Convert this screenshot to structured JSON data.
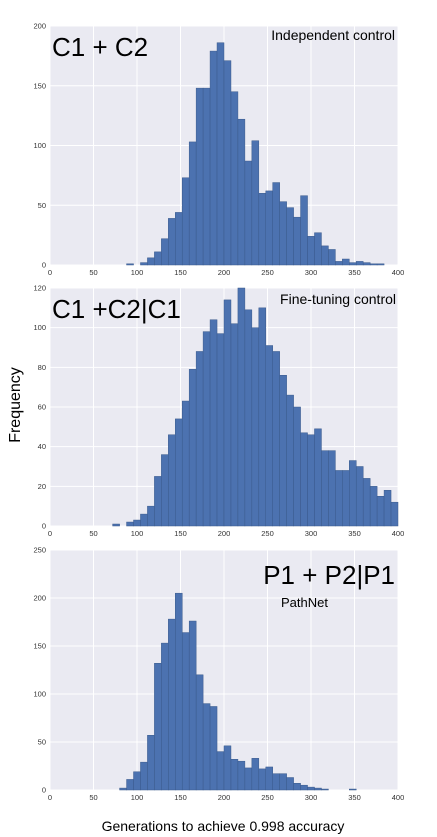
{
  "figure": {
    "ylabel": "Frequency",
    "xlabel": "Generations to achieve 0.998 accuracy"
  },
  "chart_data": [
    {
      "type": "bar",
      "title": "C1 + C2",
      "subtitle": "Independent control",
      "xlim": [
        0,
        400
      ],
      "ylim": [
        0,
        200
      ],
      "xticks": [
        0,
        50,
        100,
        150,
        200,
        250,
        300,
        350,
        400
      ],
      "yticks": [
        0,
        50,
        100,
        150,
        200
      ],
      "bin_start": 0,
      "bin_width": 8,
      "values": [
        0,
        0,
        0,
        0,
        0,
        0,
        0,
        0,
        0,
        0,
        0,
        1,
        0,
        2,
        6,
        11,
        22,
        39,
        44,
        73,
        103,
        148,
        148,
        179,
        186,
        171,
        145,
        122,
        87,
        104,
        60,
        62,
        69,
        53,
        48,
        40,
        58,
        24,
        27,
        16,
        13,
        3,
        5,
        2,
        3,
        2,
        1,
        1,
        0,
        0
      ],
      "bar_color": "#4c72b0",
      "plot_bg": "#eaeaf2",
      "grid": true
    },
    {
      "type": "bar",
      "title": "C1 +C2|C1",
      "subtitle": "Fine-tuning control",
      "xlim": [
        0,
        400
      ],
      "ylim": [
        0,
        120
      ],
      "xticks": [
        0,
        50,
        100,
        150,
        200,
        250,
        300,
        350,
        400
      ],
      "yticks": [
        0,
        20,
        40,
        60,
        80,
        100,
        120
      ],
      "bin_start": 0,
      "bin_width": 8,
      "values": [
        0,
        0,
        0,
        0,
        0,
        0,
        0,
        0,
        0,
        1,
        0,
        2,
        3,
        6,
        10,
        25,
        36,
        46,
        54,
        63,
        79,
        88,
        98,
        104,
        97,
        114,
        102,
        120,
        109,
        100,
        110,
        91,
        88,
        76,
        66,
        60,
        47,
        46,
        49,
        38,
        38,
        28,
        28,
        33,
        30,
        24,
        20,
        15,
        18,
        12,
        10,
        7
      ],
      "bar_color": "#4c72b0",
      "plot_bg": "#eaeaf2",
      "grid": true
    },
    {
      "type": "bar",
      "title": "P1 + P2|P1",
      "subtitle": "PathNet",
      "xlim": [
        0,
        400
      ],
      "ylim": [
        0,
        250
      ],
      "xticks": [
        0,
        50,
        100,
        150,
        200,
        250,
        300,
        350,
        400
      ],
      "yticks": [
        0,
        50,
        100,
        150,
        200,
        250
      ],
      "bin_start": 0,
      "bin_width": 8,
      "values": [
        0,
        0,
        0,
        0,
        0,
        0,
        0,
        0,
        0,
        0,
        2,
        11,
        19,
        29,
        57,
        132,
        153,
        178,
        205,
        164,
        176,
        120,
        90,
        87,
        40,
        46,
        32,
        30,
        23,
        33,
        22,
        24,
        17,
        17,
        13,
        7,
        5,
        3,
        2,
        1,
        0,
        0,
        0,
        1,
        0,
        0,
        0,
        0,
        0,
        0
      ],
      "bar_color": "#4c72b0",
      "plot_bg": "#eaeaf2",
      "grid": true
    }
  ]
}
